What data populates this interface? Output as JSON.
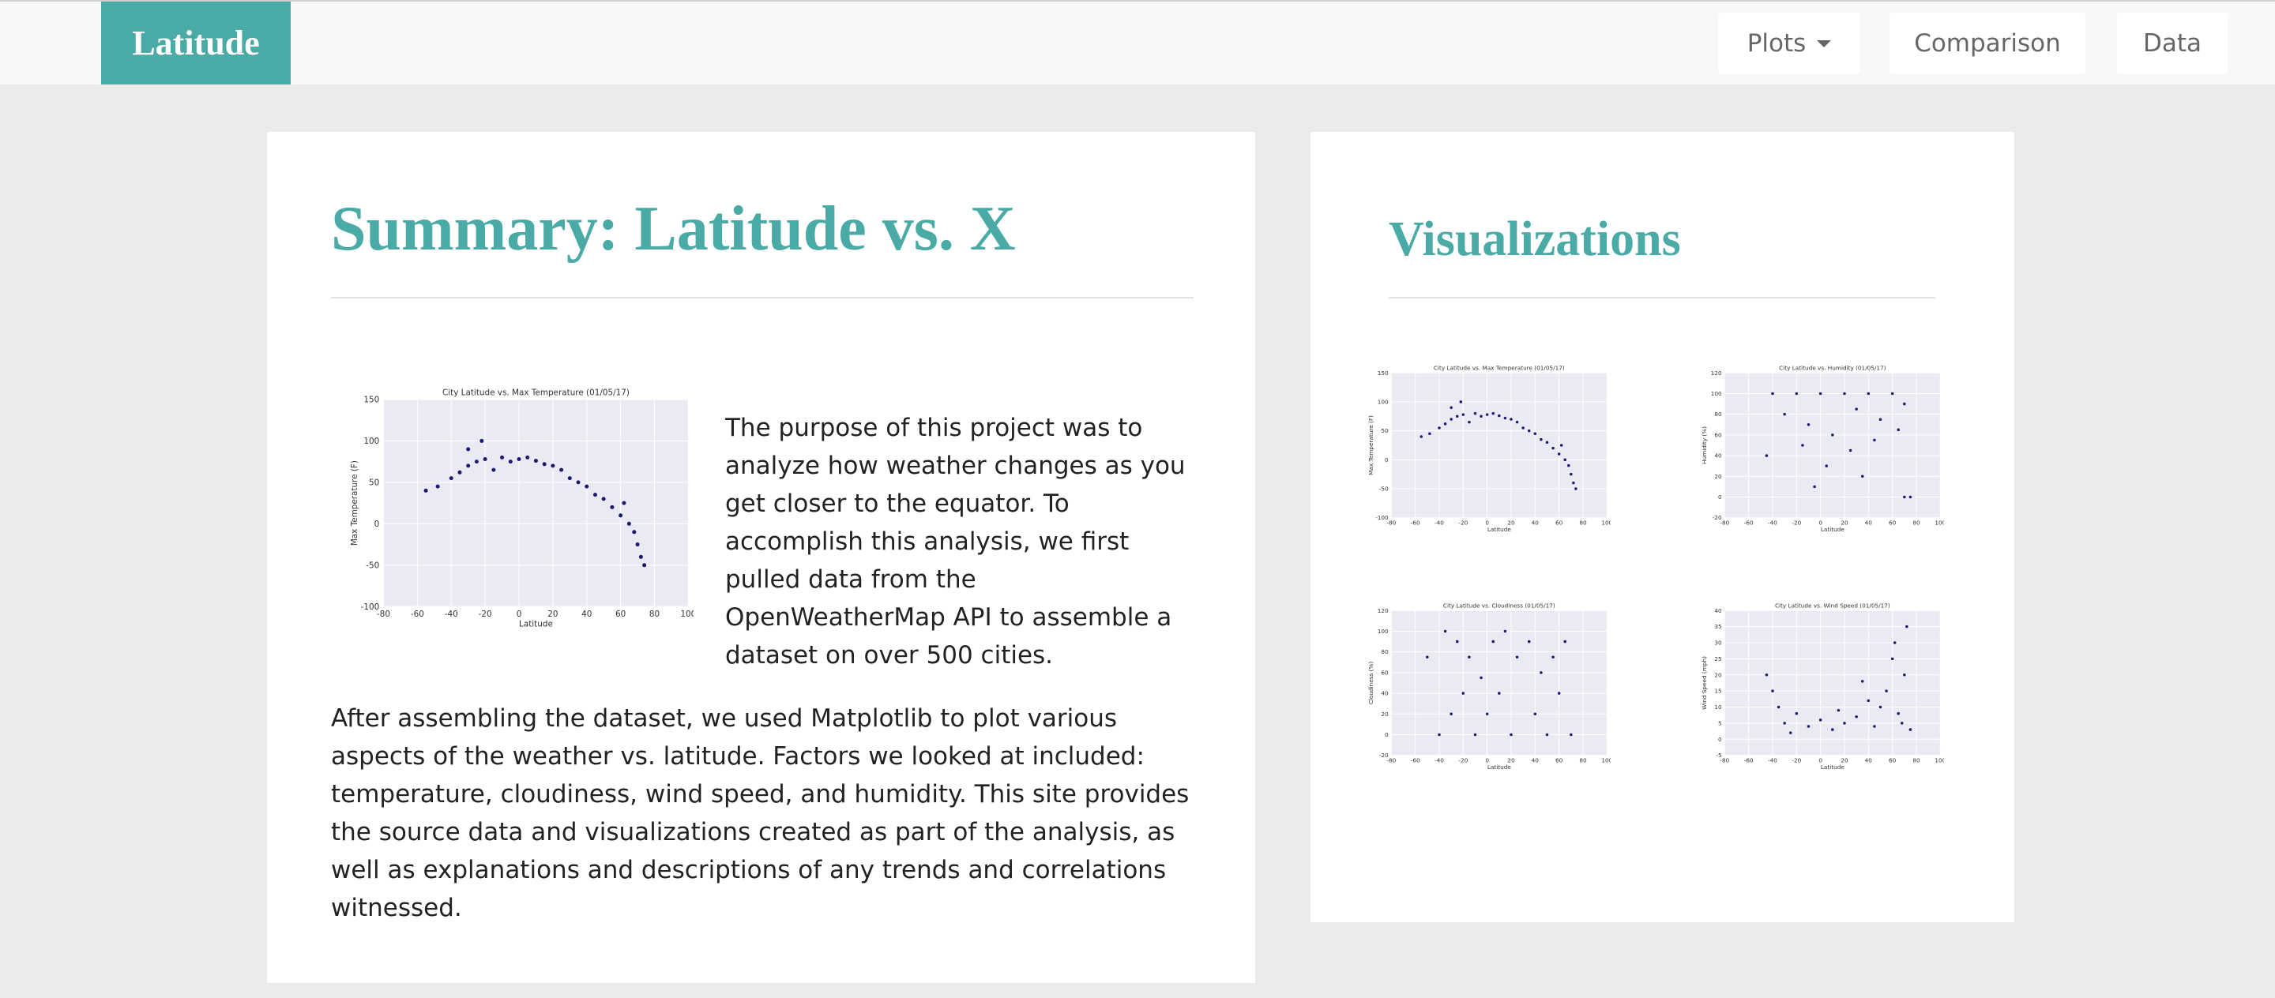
{
  "nav": {
    "brand": "Latitude",
    "items": [
      "Plots",
      "Comparison",
      "Data"
    ]
  },
  "summary": {
    "title": "Summary: Latitude vs. X",
    "paragraphs": [
      "The purpose of this project was to analyze how weather changes as you get closer to the equator. To accomplish this analysis, we first pulled data from the OpenWeatherMap API to assemble a dataset on over 500 cities.",
      "After assembling the dataset, we used Matplotlib to plot various aspects of the weather vs. latitude. Factors we looked at included: temperature, cloudiness, wind speed, and humidity. This site provides the source data and visualizations created as part of the analysis, as well as explanations and descriptions of any trends and correlations witnessed."
    ]
  },
  "visualizations": {
    "title": "Visualizations"
  },
  "chart_data": [
    {
      "type": "scatter",
      "title": "City Latitude vs. Max Temperature (01/05/17)",
      "x_label": "Latitude",
      "y_label": "Max Temperature (F)",
      "color": "#1b1b72",
      "xlim": [
        -80,
        100
      ],
      "xticks": [
        -80,
        -60,
        -40,
        -20,
        0,
        20,
        40,
        60,
        80,
        100
      ],
      "ylim": [
        -100,
        150
      ],
      "yticks": [
        -100,
        -50,
        0,
        50,
        100,
        150
      ],
      "grid": true,
      "x": [
        -55,
        -48,
        -40,
        -35,
        -30,
        -25,
        -20,
        -15,
        -10,
        -5,
        0,
        5,
        10,
        15,
        20,
        25,
        30,
        35,
        40,
        45,
        50,
        55,
        60,
        62,
        65,
        68,
        70,
        72,
        74,
        -22,
        -30
      ],
      "values": [
        40,
        45,
        55,
        62,
        70,
        75,
        78,
        65,
        80,
        75,
        78,
        80,
        76,
        72,
        70,
        65,
        55,
        50,
        45,
        35,
        30,
        20,
        10,
        25,
        0,
        -10,
        -25,
        -40,
        -50,
        100,
        90
      ]
    },
    {
      "type": "scatter",
      "title": "City Latitude vs. Max Temperature (01/05/17)",
      "x_label": "Latitude",
      "y_label": "Max Temperature (F)",
      "color": "#1b1b72",
      "xlim": [
        -80,
        100
      ],
      "xticks": [
        -80,
        -60,
        -40,
        -20,
        0,
        20,
        40,
        60,
        80,
        100
      ],
      "ylim": [
        -100,
        150
      ],
      "yticks": [
        -100,
        -50,
        0,
        50,
        100,
        150
      ],
      "grid": true,
      "x": [
        -55,
        -48,
        -40,
        -35,
        -30,
        -25,
        -20,
        -15,
        -10,
        -5,
        0,
        5,
        10,
        15,
        20,
        25,
        30,
        35,
        40,
        45,
        50,
        55,
        60,
        62,
        65,
        68,
        70,
        72,
        74,
        -22,
        -30
      ],
      "values": [
        40,
        45,
        55,
        62,
        70,
        75,
        78,
        65,
        80,
        75,
        78,
        80,
        76,
        72,
        70,
        65,
        55,
        50,
        45,
        35,
        30,
        20,
        10,
        25,
        0,
        -10,
        -25,
        -40,
        -50,
        100,
        90
      ]
    },
    {
      "type": "scatter",
      "title": "City Latitude vs. Humidity (01/05/17)",
      "x_label": "Latitude",
      "y_label": "Humidity (%)",
      "color": "#1b1b72",
      "xlim": [
        -80,
        100
      ],
      "xticks": [
        -80,
        -60,
        -40,
        -20,
        0,
        20,
        40,
        60,
        80,
        100
      ],
      "ylim": [
        -20,
        120
      ],
      "yticks": [
        -20,
        0,
        20,
        40,
        60,
        80,
        100,
        120
      ],
      "grid": true,
      "x": [
        -40,
        -20,
        0,
        20,
        40,
        60,
        -30,
        -10,
        10,
        30,
        50,
        70,
        -45,
        -15,
        5,
        25,
        45,
        65,
        -5,
        70,
        75,
        35
      ],
      "values": [
        100,
        100,
        100,
        100,
        100,
        100,
        80,
        70,
        60,
        85,
        75,
        90,
        40,
        50,
        30,
        45,
        55,
        65,
        10,
        0,
        0,
        20
      ]
    },
    {
      "type": "scatter",
      "title": "City Latitude vs. Cloudiness (01/05/17)",
      "x_label": "Latitude",
      "y_label": "Cloudiness (%)",
      "color": "#1b1b72",
      "xlim": [
        -80,
        100
      ],
      "xticks": [
        -80,
        -60,
        -40,
        -20,
        0,
        20,
        40,
        60,
        80,
        100
      ],
      "ylim": [
        -20,
        120
      ],
      "yticks": [
        -20,
        0,
        20,
        40,
        60,
        80,
        100,
        120
      ],
      "grid": true,
      "x": [
        -40,
        -10,
        20,
        50,
        70,
        -30,
        0,
        40,
        -20,
        10,
        60,
        -50,
        -15,
        25,
        55,
        -25,
        5,
        35,
        65,
        -35,
        15,
        45,
        -5
      ],
      "values": [
        0,
        0,
        0,
        0,
        0,
        20,
        20,
        20,
        40,
        40,
        40,
        75,
        75,
        75,
        75,
        90,
        90,
        90,
        90,
        100,
        100,
        60,
        55
      ]
    },
    {
      "type": "scatter",
      "title": "City Latitude vs. Wind Speed (01/05/17)",
      "x_label": "Latitude",
      "y_label": "Wind Speed (mph)",
      "color": "#1b1b72",
      "xlim": [
        -80,
        100
      ],
      "xticks": [
        -80,
        -60,
        -40,
        -20,
        0,
        20,
        40,
        60,
        80,
        100
      ],
      "ylim": [
        -5,
        40
      ],
      "yticks": [
        -5,
        0,
        5,
        10,
        15,
        20,
        25,
        30,
        35,
        40
      ],
      "grid": true,
      "x": [
        -45,
        -40,
        -35,
        -30,
        -20,
        -10,
        0,
        10,
        15,
        20,
        30,
        40,
        45,
        50,
        55,
        60,
        62,
        65,
        70,
        72,
        -25,
        35,
        68,
        75
      ],
      "values": [
        20,
        15,
        10,
        5,
        8,
        4,
        6,
        3,
        9,
        5,
        7,
        12,
        4,
        10,
        15,
        25,
        30,
        8,
        20,
        35,
        2,
        18,
        5,
        3
      ]
    }
  ]
}
